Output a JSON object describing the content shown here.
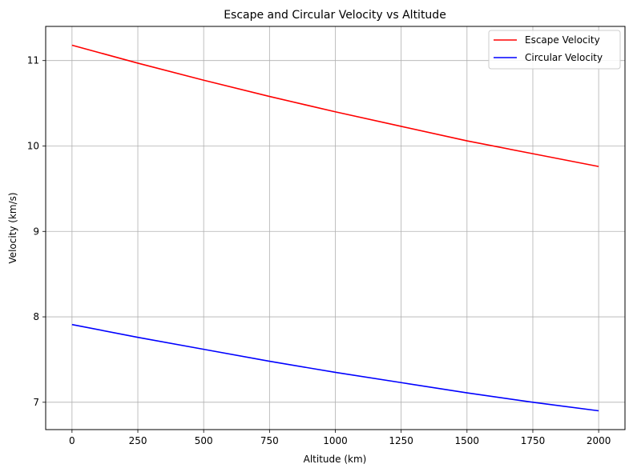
{
  "chart_data": {
    "type": "line",
    "title": "Escape and Circular Velocity vs Altitude",
    "xlabel": "Altitude (km)",
    "ylabel": "Velocity (km/s)",
    "xlim": [
      -100,
      2100
    ],
    "ylim": [
      6.68,
      11.4
    ],
    "x_ticks": [
      0,
      250,
      500,
      750,
      1000,
      1250,
      1500,
      1750,
      2000
    ],
    "x_tick_labels": [
      "0",
      "250",
      "500",
      "750",
      "1000",
      "1250",
      "1500",
      "1750",
      "2000"
    ],
    "y_ticks": [
      7,
      8,
      9,
      10,
      11
    ],
    "y_tick_labels": [
      "7",
      "8",
      "9",
      "10",
      "11"
    ],
    "grid": true,
    "legend_position": "top-right",
    "series": [
      {
        "name": "Escape Velocity",
        "color": "#ff0000",
        "x": [
          0,
          250,
          500,
          750,
          1000,
          1250,
          1500,
          1750,
          2000
        ],
        "y": [
          11.18,
          10.97,
          10.77,
          10.58,
          10.4,
          10.23,
          10.06,
          9.91,
          9.76
        ]
      },
      {
        "name": "Circular Velocity",
        "color": "#0000ff",
        "x": [
          0,
          250,
          500,
          750,
          1000,
          1250,
          1500,
          1750,
          2000
        ],
        "y": [
          7.91,
          7.76,
          7.62,
          7.48,
          7.35,
          7.23,
          7.11,
          7.0,
          6.9
        ]
      }
    ]
  }
}
